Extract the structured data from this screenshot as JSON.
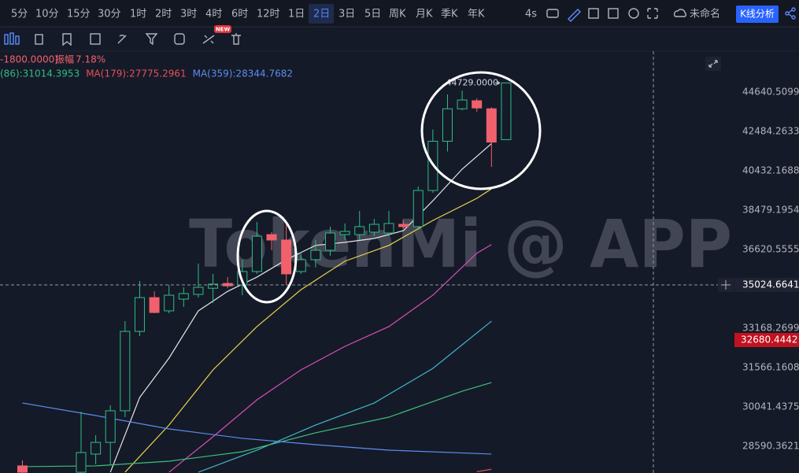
{
  "toolbar": {
    "intervals": [
      "5分",
      "10分",
      "15分",
      "30分",
      "1时",
      "2时",
      "3时",
      "4时",
      "6时",
      "12时",
      "1日",
      "2日",
      "3日",
      "5日",
      "周K",
      "月K",
      "季K",
      "年K"
    ],
    "selected": 11,
    "refresh": "4s",
    "layout_name": "未命名",
    "analysis_button": "K线分析",
    "badge": "NEW"
  },
  "legend": {
    "change": "-1800.0000)",
    "amplitude_label": "振幅",
    "amplitude": "7.18%",
    "ma_items": [
      {
        "text": "(86):31014.3953",
        "color": "#2ebd85"
      },
      {
        "text": "MA(179):27775.2961",
        "color": "#e5505c"
      },
      {
        "text": "MA(359):28344.7682",
        "color": "#5b8def"
      }
    ]
  },
  "watermark": "TokenMi @ APP",
  "chart_data": {
    "type": "candlestick",
    "open": [
      27893,
      null,
      null,
      null,
      27670,
      28310,
      28730,
      29895,
      33035,
      34470,
      33900,
      34405,
      34610,
      34880,
      35090,
      35020,
      35620,
      37315,
      37060,
      35620,
      36155,
      36585,
      37315,
      37315,
      37430,
      37390,
      37800,
      37690,
      39445,
      41965,
      43715,
      44160,
      43715,
      42050
    ],
    "high": [
      28085,
      null,
      null,
      null,
      29862,
      28991,
      30100,
      33465,
      35200,
      34743,
      35020,
      34920,
      35980,
      35515,
      35372,
      36155,
      37910,
      37430,
      37840,
      36515,
      37060,
      37690,
      37840,
      38441,
      38063,
      38441,
      37985,
      39645,
      42590,
      44510,
      44729,
      44290,
      43800,
      45160
    ],
    "low": [
      27640,
      null,
      null,
      null,
      27600,
      27950,
      27950,
      29657,
      32840,
      33800,
      33800,
      34070,
      34470,
      34237,
      34880,
      34575,
      35515,
      36585,
      35020,
      35515,
      35807,
      36335,
      37060,
      37060,
      37240,
      37240,
      37612,
      37612,
      39332,
      41425,
      43630,
      43550,
      40632,
      42050
    ],
    "close": [
      27670,
      null,
      null,
      null,
      28365,
      28730,
      29895,
      33035,
      34470,
      33830,
      34575,
      34645,
      34920,
      35060,
      34985,
      35620,
      37240,
      37060,
      35515,
      36155,
      36585,
      37390,
      37465,
      37690,
      37800,
      37840,
      37690,
      39445,
      41965,
      43715,
      44200,
      43760,
      41920,
      45160
    ],
    "up_color": "#2ebd85",
    "down_color": "#f0616d",
    "log_y": true,
    "ylim": [
      27644,
      47002
    ],
    "yticks": [
      44640.5099,
      42484.2633,
      40432.1688,
      38479.1954,
      36620.5555,
      33168.2699,
      31566.1608,
      30041.4375,
      28590.3621
    ],
    "crosshair_value": 35024.6641,
    "last_price": 32680.4442,
    "last_price_color": "#c1121f",
    "high_label": "44729.0000",
    "moving_averages": [
      {
        "color": "#e6e6e6",
        "x": [
          6,
          8,
          10,
          12,
          14,
          16,
          18,
          20,
          22,
          24,
          26,
          28,
          30,
          32
        ],
        "values": [
          27670,
          30400,
          31944,
          33900,
          34743,
          35372,
          36155,
          36810,
          36955,
          37133,
          37502,
          38937,
          40518,
          41840
        ]
      },
      {
        "color": "#e8d44d",
        "x": [
          7,
          10,
          13,
          16,
          19,
          22,
          25,
          28,
          31,
          32
        ],
        "values": [
          27670,
          29365,
          31473,
          33236,
          34815,
          36087,
          36810,
          37985,
          39055,
          39526
        ]
      },
      {
        "color": "#d94fb5",
        "x": [
          10,
          13,
          16,
          19,
          22,
          25,
          28,
          31,
          32
        ],
        "values": [
          27670,
          28933,
          30310,
          31473,
          32418,
          33236,
          34575,
          36450,
          36848
        ]
      },
      {
        "color": "#3fb8c9",
        "x": [
          12,
          16,
          20,
          24,
          28,
          32
        ],
        "values": [
          27670,
          28450,
          29365,
          30190,
          31533,
          33465
        ]
      },
      {
        "color": "#3dbf7a",
        "x": [
          0,
          5,
          10,
          15,
          20,
          25,
          30,
          32
        ],
        "values": [
          27865,
          27893,
          28058,
          28393,
          29077,
          29657,
          30640,
          30977
        ]
      },
      {
        "color": "#5b8def",
        "x": [
          0,
          5,
          10,
          15,
          20,
          25,
          32
        ],
        "values": [
          30190,
          29716,
          29220,
          28877,
          28647,
          28450,
          28310
        ]
      },
      {
        "color": "#e5505c",
        "x": [
          31,
          32
        ],
        "values": [
          27690,
          27775
        ]
      }
    ]
  }
}
